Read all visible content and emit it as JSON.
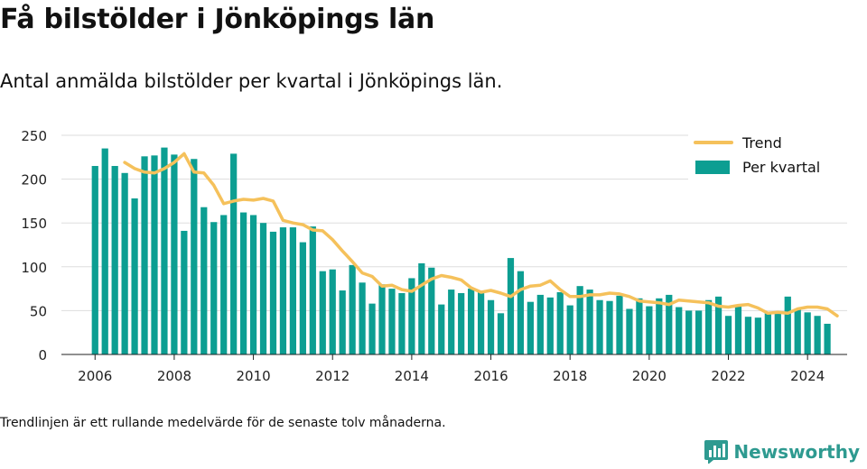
{
  "title": "Få bilstölder i Jönköpings län",
  "subtitle": "Antal anmälda bilstölder per kvartal i Jönköpings län.",
  "note": "Trendlinjen är ett rullande medelvärde för de senaste tolv månaderna.",
  "brand": {
    "name": "Newsworthy",
    "logo_icon": "bar-chart-logo-icon",
    "color": "#2e9a90"
  },
  "chart_data": {
    "type": "bar",
    "x_range": [
      2005.15,
      2025.0
    ],
    "ylim": [
      0,
      250
    ],
    "y_ticks": [
      0,
      50,
      100,
      150,
      200,
      250
    ],
    "x_ticks": [
      2006,
      2008,
      2010,
      2012,
      2014,
      2016,
      2018,
      2020,
      2022,
      2024
    ],
    "grid": true,
    "legend_position": "top-right",
    "colors": {
      "bars": "#0c9e92",
      "trend": "#f5c15b",
      "grid": "#dddddd"
    },
    "series": [
      {
        "name": "Per kvartal",
        "type": "bar",
        "x_start": 2006.0,
        "x_step": 0.25,
        "values": [
          215,
          235,
          215,
          207,
          178,
          226,
          227,
          236,
          228,
          141,
          223,
          168,
          151,
          159,
          229,
          162,
          159,
          150,
          140,
          145,
          145,
          128,
          146,
          95,
          97,
          73,
          102,
          82,
          58,
          80,
          75,
          70,
          87,
          104,
          99,
          57,
          74,
          70,
          75,
          72,
          62,
          47,
          110,
          95,
          60,
          68,
          65,
          71,
          56,
          78,
          74,
          62,
          61,
          67,
          52,
          64,
          55,
          64,
          68,
          54,
          50,
          50,
          62,
          66,
          44,
          55,
          43,
          42,
          48,
          47,
          66,
          52,
          48,
          44,
          35
        ]
      },
      {
        "name": "Trend",
        "type": "line",
        "points": [
          [
            2006.75,
            219
          ],
          [
            2007.0,
            212
          ],
          [
            2007.25,
            208
          ],
          [
            2007.5,
            207
          ],
          [
            2007.75,
            212
          ],
          [
            2008.0,
            219
          ],
          [
            2008.25,
            229
          ],
          [
            2008.5,
            208
          ],
          [
            2008.75,
            207
          ],
          [
            2009.0,
            193
          ],
          [
            2009.25,
            172
          ],
          [
            2009.5,
            175
          ],
          [
            2009.75,
            177
          ],
          [
            2010.0,
            176
          ],
          [
            2010.25,
            178
          ],
          [
            2010.5,
            175
          ],
          [
            2010.75,
            153
          ],
          [
            2011.0,
            150
          ],
          [
            2011.25,
            148
          ],
          [
            2011.5,
            142
          ],
          [
            2011.75,
            141
          ],
          [
            2012.0,
            131
          ],
          [
            2012.25,
            118
          ],
          [
            2012.5,
            106
          ],
          [
            2012.75,
            93
          ],
          [
            2013.0,
            89
          ],
          [
            2013.25,
            78
          ],
          [
            2013.5,
            79
          ],
          [
            2013.75,
            74
          ],
          [
            2014.0,
            72
          ],
          [
            2014.25,
            79
          ],
          [
            2014.5,
            86
          ],
          [
            2014.75,
            90
          ],
          [
            2015.0,
            88
          ],
          [
            2015.25,
            85
          ],
          [
            2015.5,
            76
          ],
          [
            2015.75,
            71
          ],
          [
            2016.0,
            73
          ],
          [
            2016.25,
            70
          ],
          [
            2016.5,
            66
          ],
          [
            2016.75,
            74
          ],
          [
            2017.0,
            78
          ],
          [
            2017.25,
            79
          ],
          [
            2017.5,
            84
          ],
          [
            2017.75,
            74
          ],
          [
            2018.0,
            66
          ],
          [
            2018.25,
            66
          ],
          [
            2018.5,
            68
          ],
          [
            2018.75,
            68
          ],
          [
            2019.0,
            70
          ],
          [
            2019.25,
            69
          ],
          [
            2019.5,
            66
          ],
          [
            2019.75,
            61
          ],
          [
            2020.0,
            60
          ],
          [
            2020.25,
            59
          ],
          [
            2020.5,
            57
          ],
          [
            2020.75,
            62
          ],
          [
            2021.0,
            61
          ],
          [
            2021.25,
            60
          ],
          [
            2021.5,
            59
          ],
          [
            2021.75,
            55
          ],
          [
            2022.0,
            54
          ],
          [
            2022.25,
            56
          ],
          [
            2022.5,
            57
          ],
          [
            2022.75,
            53
          ],
          [
            2023.0,
            47
          ],
          [
            2023.25,
            48
          ],
          [
            2023.5,
            47
          ],
          [
            2023.75,
            52
          ],
          [
            2024.0,
            54
          ],
          [
            2024.25,
            54
          ],
          [
            2024.5,
            52
          ],
          [
            2024.75,
            44
          ]
        ]
      }
    ]
  }
}
